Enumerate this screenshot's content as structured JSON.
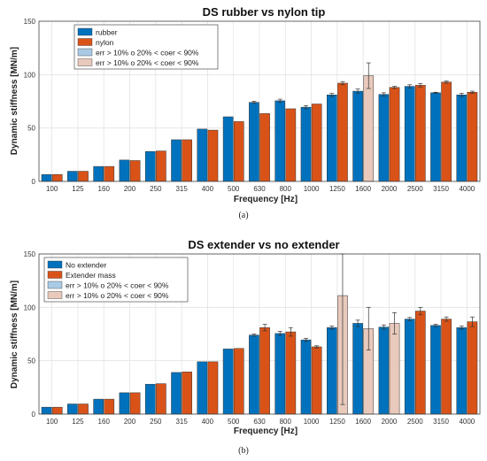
{
  "colors": {
    "series1": "#0072BD",
    "series2": "#D95319",
    "err1": "#A9CBE6",
    "err2": "#E8C9BC",
    "grid": "#E3E3E3",
    "axis": "#444444"
  },
  "chart_data": [
    {
      "type": "bar",
      "title": "DS rubber vs nylon tip",
      "caption": "(a)",
      "xlabel": "Frequency [Hz]",
      "ylabel": "Dynamic stiffness [MN/m]",
      "ylim": [
        0,
        150
      ],
      "yticks": [
        "0",
        "50",
        "100",
        "150"
      ],
      "grid": true,
      "legend_position": "top-left",
      "categories": [
        "100",
        "125",
        "160",
        "200",
        "250",
        "315",
        "400",
        "500",
        "630",
        "800",
        "1000",
        "1250",
        "1600",
        "2000",
        "2500",
        "3150",
        "4000"
      ],
      "series": [
        {
          "name": "rubber",
          "values": [
            6.5,
            9.5,
            14,
            20,
            28,
            39,
            49,
            60.5,
            74,
            75.5,
            69.5,
            81,
            84.5,
            81.5,
            89,
            83,
            81
          ],
          "err": [
            0,
            0,
            0,
            0,
            0,
            0,
            0,
            0,
            1.0,
            1.5,
            1.5,
            1.5,
            2.0,
            1.5,
            1.5,
            0.5,
            1.5
          ]
        },
        {
          "name": "nylon",
          "values": [
            6.5,
            9.5,
            14,
            19.5,
            28.5,
            39,
            48,
            56,
            63.5,
            68,
            72.5,
            92,
            99,
            88,
            90,
            93,
            83.5
          ],
          "err": [
            0,
            0,
            0,
            0,
            0,
            0,
            0,
            0,
            0,
            0,
            0,
            1.5,
            12.0,
            1.0,
            1.5,
            1.0,
            1.0
          ]
        }
      ],
      "highlight": {
        "series_index": 1,
        "category_index": 12
      },
      "legend_extra": [
        "err > 10% o 20% < coer < 90%",
        "err > 10% o 20% < coer < 90%"
      ]
    },
    {
      "type": "bar",
      "title": "DS extender vs no extender",
      "caption": "(b)",
      "xlabel": "Frequency [Hz]",
      "ylabel": "Dynamic stiffness [MN/m]",
      "ylim": [
        0,
        150
      ],
      "yticks": [
        "0",
        "50",
        "100",
        "150"
      ],
      "grid": true,
      "legend_position": "top-left",
      "categories": [
        "100",
        "125",
        "160",
        "200",
        "250",
        "315",
        "400",
        "500",
        "630",
        "800",
        "1000",
        "1250",
        "1600",
        "2000",
        "2500",
        "3150",
        "4000"
      ],
      "series": [
        {
          "name": "No extender",
          "values": [
            6.5,
            9.5,
            14,
            20,
            28,
            39,
            49,
            61,
            74,
            75.5,
            69.5,
            81,
            85,
            81.5,
            89,
            83,
            81
          ],
          "err": [
            0,
            0,
            0,
            0,
            0,
            0,
            0,
            0,
            1.0,
            2.0,
            1.5,
            1.5,
            3.0,
            2.0,
            1.5,
            1.0,
            1.5
          ]
        },
        {
          "name": "Extender mass",
          "values": [
            6.5,
            9.5,
            14,
            20,
            28.5,
            39.5,
            49,
            61.5,
            81,
            77,
            63,
            111,
            80,
            85,
            96.5,
            89,
            86.5
          ],
          "err": [
            0,
            0,
            0,
            0,
            0,
            0,
            0,
            0,
            3.0,
            4.0,
            1.0,
            102,
            20.0,
            10.0,
            3.5,
            2.0,
            4.5
          ]
        }
      ],
      "highlight_series2": [
        11,
        12,
        13
      ],
      "legend_extra": [
        "err > 10% o 20% < coer < 90%",
        "err > 10% o 20% < coer < 90%"
      ]
    }
  ]
}
